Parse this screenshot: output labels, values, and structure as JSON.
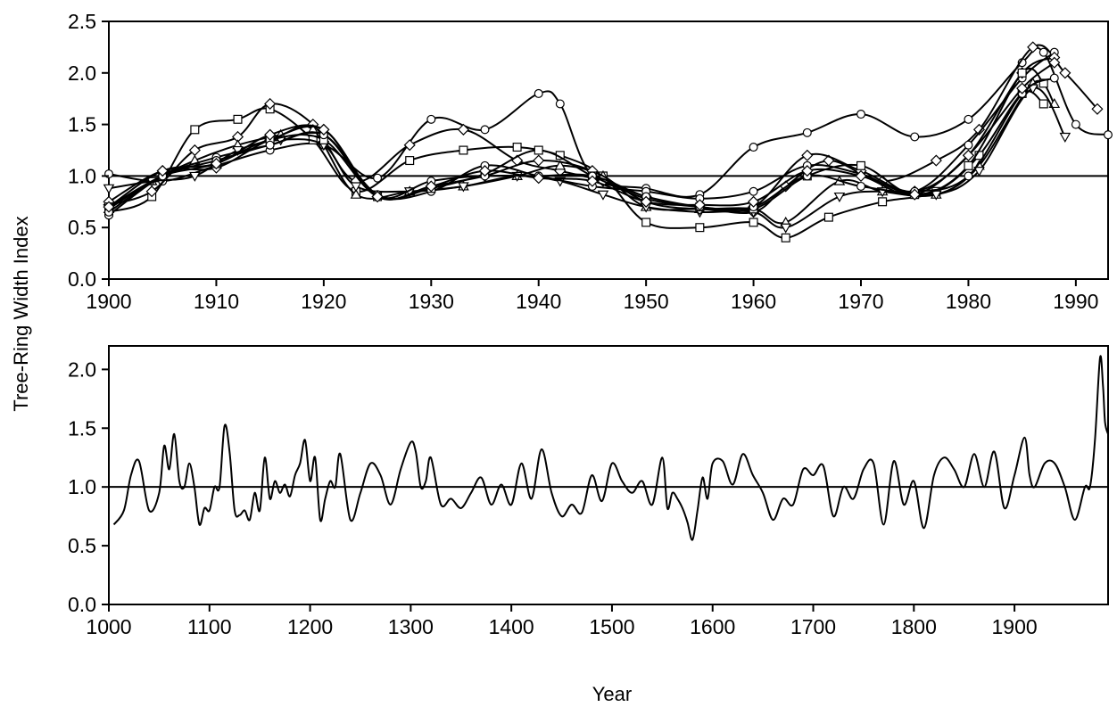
{
  "figure": {
    "ylabel": "Tree-Ring Width Index",
    "xlabel": "Year"
  },
  "chart_data": [
    {
      "type": "line",
      "xlim": [
        1900,
        1993
      ],
      "ylim": [
        0,
        2.5
      ],
      "xticks": [
        1900,
        1910,
        1920,
        1930,
        1940,
        1950,
        1960,
        1970,
        1980,
        1990
      ],
      "yticks": [
        0.0,
        0.5,
        1.0,
        1.5,
        2.0,
        2.5
      ],
      "ytick_labels": [
        "0.0",
        "0.5",
        "1.0",
        "1.5",
        "2.0",
        "2.5"
      ],
      "reference_line": 1.0,
      "grid": false,
      "legend": "none",
      "marker_names": [
        "circle",
        "square",
        "diamond",
        "triangle-up",
        "triangle-down",
        "circle",
        "diamond",
        "square",
        "circle",
        "diamond"
      ],
      "series": [
        {
          "x": [
            1900,
            1905,
            1910,
            1915,
            1920,
            1925,
            1930,
            1935,
            1940,
            1942,
            1945,
            1950,
            1955,
            1960,
            1965,
            1970,
            1975,
            1980,
            1985,
            1987,
            1990,
            1993
          ],
          "y": [
            1.02,
            0.95,
            1.1,
            1.25,
            1.3,
            0.98,
            1.55,
            1.45,
            1.8,
            1.7,
            1.0,
            0.88,
            0.82,
            1.28,
            1.42,
            1.6,
            1.38,
            1.55,
            2.1,
            2.2,
            1.5,
            1.4
          ]
        },
        {
          "x": [
            1900,
            1904,
            1908,
            1912,
            1915,
            1919,
            1923,
            1928,
            1933,
            1938,
            1942,
            1946,
            1950,
            1955,
            1960,
            1963,
            1967,
            1972,
            1977,
            1981,
            1985,
            1987
          ],
          "y": [
            0.65,
            0.8,
            1.45,
            1.55,
            1.65,
            1.35,
            0.85,
            1.15,
            1.25,
            1.28,
            1.2,
            1.0,
            0.55,
            0.5,
            0.55,
            0.4,
            0.6,
            0.75,
            0.85,
            1.2,
            1.8,
            1.7
          ]
        },
        {
          "x": [
            1900,
            1904,
            1908,
            1912,
            1915,
            1919,
            1923,
            1928,
            1933,
            1938,
            1942,
            1946,
            1950,
            1955,
            1960,
            1963,
            1967,
            1972,
            1977,
            1981,
            1986,
            1989,
            1992
          ],
          "y": [
            0.72,
            0.85,
            1.25,
            1.38,
            1.7,
            1.5,
            0.95,
            1.3,
            1.45,
            1.15,
            1.05,
            0.95,
            0.8,
            0.7,
            0.65,
            0.9,
            1.15,
            0.95,
            1.15,
            1.45,
            2.25,
            2.0,
            1.65
          ]
        },
        {
          "x": [
            1900,
            1904,
            1908,
            1912,
            1916,
            1919,
            1923,
            1928,
            1933,
            1938,
            1942,
            1946,
            1950,
            1955,
            1960,
            1963,
            1968,
            1972,
            1977,
            1981,
            1986,
            1988
          ],
          "y": [
            0.68,
            0.95,
            1.15,
            1.3,
            1.4,
            1.45,
            0.82,
            0.85,
            0.9,
            1.0,
            1.1,
            1.0,
            0.7,
            0.68,
            0.68,
            0.55,
            0.95,
            0.85,
            0.82,
            1.1,
            1.9,
            1.7
          ]
        },
        {
          "x": [
            1900,
            1904,
            1908,
            1912,
            1916,
            1920,
            1923,
            1928,
            1933,
            1938,
            1942,
            1946,
            1950,
            1955,
            1960,
            1963,
            1968,
            1972,
            1977,
            1981,
            1986,
            1989
          ],
          "y": [
            0.88,
            0.95,
            1.0,
            1.25,
            1.35,
            1.3,
            0.9,
            0.85,
            0.9,
            1.0,
            0.95,
            0.82,
            0.7,
            0.65,
            0.65,
            0.5,
            0.8,
            0.85,
            0.82,
            1.05,
            1.85,
            1.38
          ]
        },
        {
          "x": [
            1900,
            1905,
            1910,
            1915,
            1920,
            1925,
            1930,
            1935,
            1940,
            1945,
            1950,
            1955,
            1960,
            1965,
            1970,
            1975,
            1980,
            1985,
            1988
          ],
          "y": [
            0.62,
            1.0,
            1.18,
            1.3,
            1.4,
            0.82,
            0.85,
            1.1,
            1.0,
            0.9,
            0.85,
            0.78,
            0.85,
            1.1,
            1.02,
            0.85,
            1.3,
            1.95,
            2.2
          ]
        },
        {
          "x": [
            1900,
            1905,
            1910,
            1915,
            1920,
            1925,
            1930,
            1935,
            1940,
            1945,
            1950,
            1955,
            1960,
            1965,
            1970,
            1975,
            1980,
            1985,
            1988
          ],
          "y": [
            0.75,
            1.05,
            1.08,
            1.35,
            1.45,
            0.8,
            0.9,
            1.0,
            1.15,
            1.05,
            0.75,
            0.68,
            0.7,
            1.2,
            1.05,
            0.85,
            1.2,
            2.0,
            2.15
          ]
        },
        {
          "x": [
            1900,
            1905,
            1910,
            1915,
            1920,
            1925,
            1930,
            1935,
            1940,
            1945,
            1950,
            1955,
            1960,
            1965,
            1970,
            1975,
            1980,
            1985,
            1987
          ],
          "y": [
            0.7,
            1.0,
            1.12,
            1.35,
            1.35,
            0.8,
            0.88,
            1.02,
            1.25,
            1.0,
            0.78,
            0.7,
            0.68,
            1.0,
            1.1,
            0.82,
            1.1,
            2.0,
            1.9
          ]
        },
        {
          "x": [
            1900,
            1905,
            1910,
            1915,
            1920,
            1925,
            1930,
            1935,
            1940,
            1945,
            1950,
            1955,
            1960,
            1965,
            1970,
            1975,
            1980,
            1985,
            1988
          ],
          "y": [
            0.65,
            1.0,
            1.15,
            1.3,
            1.4,
            0.8,
            0.95,
            1.0,
            1.0,
            1.0,
            0.8,
            0.7,
            0.7,
            1.0,
            0.9,
            0.85,
            1.0,
            1.8,
            1.95
          ]
        },
        {
          "x": [
            1900,
            1905,
            1910,
            1915,
            1920,
            1925,
            1930,
            1935,
            1940,
            1945,
            1950,
            1955,
            1960,
            1965,
            1970,
            1975,
            1980,
            1985,
            1988
          ],
          "y": [
            0.7,
            1.05,
            1.12,
            1.4,
            1.45,
            0.8,
            0.9,
            1.05,
            0.98,
            0.95,
            0.75,
            0.72,
            0.75,
            1.05,
            1.0,
            0.82,
            1.2,
            1.85,
            2.1
          ]
        }
      ]
    },
    {
      "type": "line",
      "xlim": [
        1000,
        1993
      ],
      "ylim": [
        0,
        2.2
      ],
      "xticks": [
        1000,
        1100,
        1200,
        1300,
        1400,
        1500,
        1600,
        1700,
        1800,
        1900
      ],
      "yticks": [
        0.0,
        0.5,
        1.0,
        1.5,
        2.0
      ],
      "ytick_labels": [
        "0.0",
        "0.5",
        "1.0",
        "1.5",
        "2.0"
      ],
      "reference_line": 1.0,
      "grid": false,
      "legend": "none",
      "series": [
        {
          "x": [
            1005,
            1015,
            1022,
            1030,
            1040,
            1050,
            1055,
            1060,
            1065,
            1070,
            1075,
            1080,
            1085,
            1090,
            1095,
            1100,
            1105,
            1110,
            1115,
            1120,
            1125,
            1130,
            1135,
            1140,
            1145,
            1150,
            1155,
            1160,
            1165,
            1170,
            1175,
            1180,
            1185,
            1190,
            1195,
            1200,
            1205,
            1210,
            1215,
            1220,
            1225,
            1230,
            1240,
            1250,
            1260,
            1270,
            1280,
            1290,
            1300,
            1305,
            1310,
            1315,
            1320,
            1330,
            1340,
            1350,
            1360,
            1370,
            1380,
            1390,
            1400,
            1410,
            1420,
            1430,
            1440,
            1450,
            1460,
            1470,
            1480,
            1490,
            1500,
            1510,
            1520,
            1530,
            1540,
            1550,
            1555,
            1560,
            1565,
            1570,
            1575,
            1580,
            1585,
            1590,
            1595,
            1600,
            1610,
            1620,
            1630,
            1640,
            1650,
            1660,
            1670,
            1680,
            1690,
            1700,
            1710,
            1720,
            1730,
            1740,
            1750,
            1760,
            1770,
            1780,
            1790,
            1800,
            1810,
            1820,
            1830,
            1840,
            1850,
            1860,
            1870,
            1880,
            1890,
            1900,
            1910,
            1915,
            1920,
            1930,
            1940,
            1950,
            1960,
            1970,
            1975,
            1980,
            1985,
            1988,
            1990,
            1993
          ],
          "y": [
            0.68,
            0.8,
            1.1,
            1.22,
            0.8,
            0.95,
            1.35,
            1.15,
            1.45,
            1.05,
            1.0,
            1.2,
            1.0,
            0.68,
            0.82,
            0.8,
            1.0,
            1.0,
            1.52,
            1.3,
            0.8,
            0.76,
            0.8,
            0.72,
            0.95,
            0.8,
            1.25,
            0.9,
            1.05,
            0.95,
            1.02,
            0.92,
            1.1,
            1.2,
            1.4,
            1.05,
            1.25,
            0.72,
            0.9,
            1.05,
            1.0,
            1.28,
            0.72,
            0.95,
            1.2,
            1.1,
            0.85,
            1.15,
            1.38,
            1.3,
            1.0,
            1.05,
            1.25,
            0.85,
            0.9,
            0.82,
            0.95,
            1.08,
            0.85,
            1.02,
            0.85,
            1.2,
            0.9,
            1.32,
            0.95,
            0.75,
            0.85,
            0.78,
            1.1,
            0.88,
            1.2,
            1.05,
            0.95,
            1.05,
            0.85,
            1.25,
            0.82,
            0.95,
            0.9,
            0.82,
            0.7,
            0.55,
            0.8,
            1.08,
            0.9,
            1.2,
            1.22,
            1.02,
            1.28,
            1.1,
            0.95,
            0.72,
            0.9,
            0.85,
            1.15,
            1.1,
            1.18,
            0.75,
            1.0,
            0.9,
            1.15,
            1.2,
            0.68,
            1.22,
            0.85,
            1.05,
            0.65,
            1.1,
            1.25,
            1.15,
            1.0,
            1.28,
            1.0,
            1.3,
            0.82,
            1.1,
            1.42,
            1.1,
            1.0,
            1.2,
            1.2,
            1.0,
            0.72,
            1.0,
            1.0,
            1.4,
            2.1,
            1.85,
            1.55,
            1.45
          ]
        }
      ]
    }
  ]
}
